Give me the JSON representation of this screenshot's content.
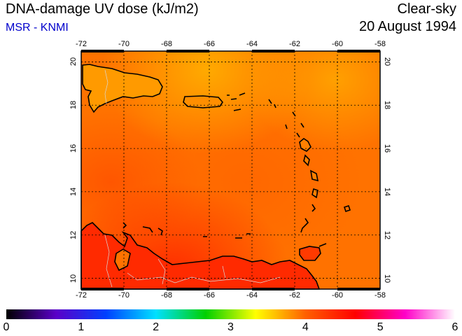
{
  "header": {
    "title": "DNA-damage UV dose (kJ/m2)",
    "subtitle": "MSR - KNMI",
    "scenario": "Clear-sky",
    "date": "20 August 1994"
  },
  "map": {
    "lon_ticks": [
      "-72",
      "-70",
      "-68",
      "-66",
      "-64",
      "-62",
      "-60",
      "-58"
    ],
    "lat_ticks": [
      "20",
      "18",
      "16",
      "14",
      "12",
      "10"
    ],
    "lon_range": [
      -72,
      -58
    ],
    "lat_range": [
      9.5,
      20.5
    ],
    "grid": true
  },
  "colorbar": {
    "labels": [
      "0",
      "1",
      "2",
      "3",
      "4",
      "5",
      "6"
    ],
    "range": [
      0,
      6
    ],
    "stops": [
      "#000000",
      "#5a00c8",
      "#0040ff",
      "#00e0ff",
      "#00d000",
      "#ffff00",
      "#ff6000",
      "#ff0000",
      "#ff00c8",
      "#ffffff"
    ]
  }
}
